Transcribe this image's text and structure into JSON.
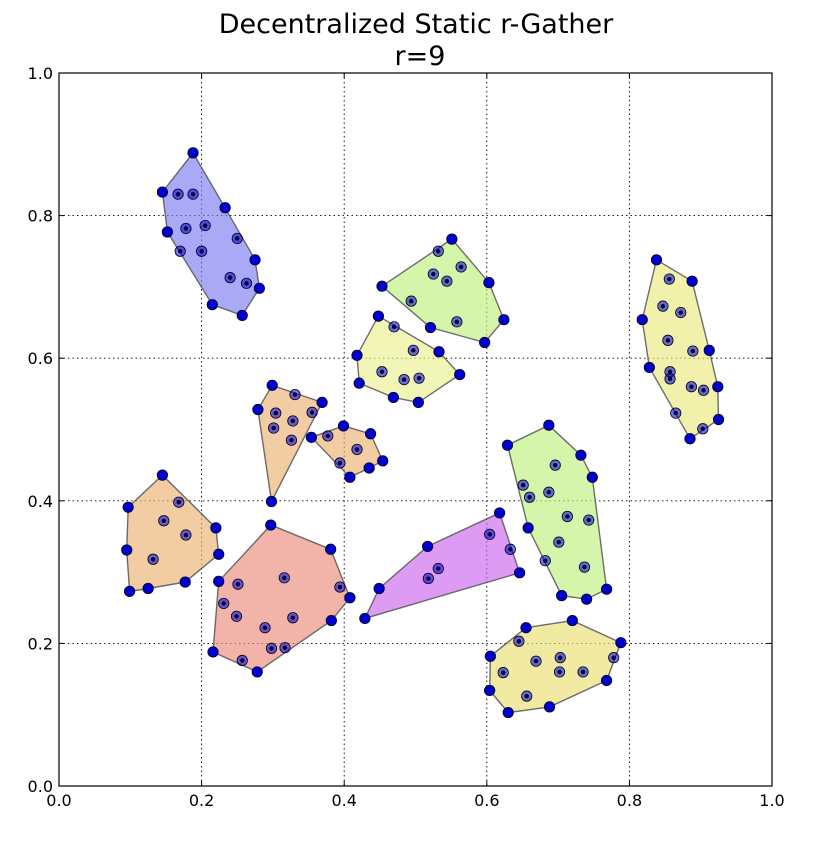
{
  "chart_data": {
    "type": "scatter",
    "title": "Decentralized Static r-Gather",
    "subtitle": "r=9",
    "xlabel": "",
    "ylabel": "",
    "xlim": [
      0.0,
      1.0
    ],
    "ylim": [
      0.0,
      1.0
    ],
    "xticks": [
      "0.0",
      "0.2",
      "0.4",
      "0.6",
      "0.8",
      "1.0"
    ],
    "yticks": [
      "0.0",
      "0.2",
      "0.4",
      "0.6",
      "0.8",
      "1.0"
    ],
    "grid": true,
    "clusters": [
      {
        "color": "#7b7bf0",
        "points": [
          [
            0.145,
            0.833
          ],
          [
            0.188,
            0.888
          ],
          [
            0.167,
            0.83
          ],
          [
            0.188,
            0.83
          ],
          [
            0.233,
            0.811
          ],
          [
            0.152,
            0.777
          ],
          [
            0.178,
            0.782
          ],
          [
            0.205,
            0.786
          ],
          [
            0.25,
            0.768
          ],
          [
            0.17,
            0.75
          ],
          [
            0.2,
            0.75
          ],
          [
            0.24,
            0.713
          ],
          [
            0.263,
            0.705
          ],
          [
            0.275,
            0.738
          ],
          [
            0.281,
            0.698
          ],
          [
            0.215,
            0.675
          ],
          [
            0.257,
            0.66
          ]
        ]
      },
      {
        "color": "#bff07e",
        "points": [
          [
            0.453,
            0.701
          ],
          [
            0.532,
            0.75
          ],
          [
            0.551,
            0.767
          ],
          [
            0.525,
            0.718
          ],
          [
            0.544,
            0.708
          ],
          [
            0.564,
            0.728
          ],
          [
            0.603,
            0.706
          ],
          [
            0.494,
            0.68
          ],
          [
            0.521,
            0.643
          ],
          [
            0.558,
            0.651
          ],
          [
            0.597,
            0.622
          ],
          [
            0.624,
            0.654
          ]
        ]
      },
      {
        "color": "#eaf08e",
        "points": [
          [
            0.448,
            0.659
          ],
          [
            0.47,
            0.644
          ],
          [
            0.418,
            0.604
          ],
          [
            0.497,
            0.611
          ],
          [
            0.533,
            0.609
          ],
          [
            0.453,
            0.581
          ],
          [
            0.484,
            0.57
          ],
          [
            0.505,
            0.572
          ],
          [
            0.562,
            0.577
          ],
          [
            0.421,
            0.565
          ],
          [
            0.469,
            0.545
          ],
          [
            0.504,
            0.538
          ]
        ]
      },
      {
        "color": "#eaea7e",
        "points": [
          [
            0.838,
            0.738
          ],
          [
            0.856,
            0.711
          ],
          [
            0.888,
            0.708
          ],
          [
            0.847,
            0.673
          ],
          [
            0.872,
            0.664
          ],
          [
            0.818,
            0.654
          ],
          [
            0.854,
            0.625
          ],
          [
            0.889,
            0.61
          ],
          [
            0.912,
            0.611
          ],
          [
            0.828,
            0.587
          ],
          [
            0.857,
            0.581
          ],
          [
            0.857,
            0.571
          ],
          [
            0.887,
            0.56
          ],
          [
            0.904,
            0.555
          ],
          [
            0.924,
            0.56
          ],
          [
            0.865,
            0.523
          ],
          [
            0.885,
            0.487
          ],
          [
            0.903,
            0.501
          ],
          [
            0.925,
            0.514
          ]
        ]
      },
      {
        "color": "#ebb070",
        "points": [
          [
            0.299,
            0.562
          ],
          [
            0.279,
            0.528
          ],
          [
            0.331,
            0.549
          ],
          [
            0.304,
            0.523
          ],
          [
            0.328,
            0.512
          ],
          [
            0.355,
            0.524
          ],
          [
            0.369,
            0.538
          ],
          [
            0.301,
            0.502
          ],
          [
            0.326,
            0.485
          ],
          [
            0.298,
            0.399
          ]
        ]
      },
      {
        "color": "#ebb070",
        "points": [
          [
            0.354,
            0.489
          ],
          [
            0.377,
            0.491
          ],
          [
            0.399,
            0.505
          ],
          [
            0.418,
            0.472
          ],
          [
            0.437,
            0.494
          ],
          [
            0.394,
            0.453
          ],
          [
            0.408,
            0.433
          ],
          [
            0.435,
            0.446
          ],
          [
            0.454,
            0.456
          ]
        ]
      },
      {
        "color": "#ebb070",
        "points": [
          [
            0.145,
            0.436
          ],
          [
            0.168,
            0.398
          ],
          [
            0.097,
            0.391
          ],
          [
            0.147,
            0.372
          ],
          [
            0.178,
            0.352
          ],
          [
            0.22,
            0.362
          ],
          [
            0.095,
            0.331
          ],
          [
            0.132,
            0.318
          ],
          [
            0.224,
            0.325
          ],
          [
            0.099,
            0.273
          ],
          [
            0.125,
            0.277
          ],
          [
            0.177,
            0.286
          ]
        ]
      },
      {
        "color": "#eb8a7a",
        "points": [
          [
            0.297,
            0.366
          ],
          [
            0.381,
            0.332
          ],
          [
            0.316,
            0.292
          ],
          [
            0.224,
            0.287
          ],
          [
            0.251,
            0.283
          ],
          [
            0.394,
            0.279
          ],
          [
            0.408,
            0.264
          ],
          [
            0.231,
            0.256
          ],
          [
            0.249,
            0.238
          ],
          [
            0.328,
            0.236
          ],
          [
            0.382,
            0.232
          ],
          [
            0.289,
            0.222
          ],
          [
            0.298,
            0.193
          ],
          [
            0.317,
            0.194
          ],
          [
            0.216,
            0.188
          ],
          [
            0.257,
            0.176
          ],
          [
            0.278,
            0.16
          ]
        ]
      },
      {
        "color": "#cc66ee",
        "points": [
          [
            0.618,
            0.383
          ],
          [
            0.604,
            0.353
          ],
          [
            0.517,
            0.336
          ],
          [
            0.633,
            0.332
          ],
          [
            0.532,
            0.305
          ],
          [
            0.518,
            0.291
          ],
          [
            0.646,
            0.299
          ],
          [
            0.449,
            0.277
          ],
          [
            0.429,
            0.235
          ]
        ]
      },
      {
        "color": "#bff07e",
        "points": [
          [
            0.687,
            0.506
          ],
          [
            0.629,
            0.478
          ],
          [
            0.732,
            0.464
          ],
          [
            0.696,
            0.45
          ],
          [
            0.748,
            0.433
          ],
          [
            0.651,
            0.422
          ],
          [
            0.66,
            0.405
          ],
          [
            0.687,
            0.412
          ],
          [
            0.713,
            0.378
          ],
          [
            0.743,
            0.373
          ],
          [
            0.658,
            0.362
          ],
          [
            0.701,
            0.342
          ],
          [
            0.682,
            0.316
          ],
          [
            0.737,
            0.307
          ],
          [
            0.705,
            0.267
          ],
          [
            0.74,
            0.262
          ],
          [
            0.768,
            0.276
          ]
        ]
      },
      {
        "color": "#e8df70",
        "points": [
          [
            0.655,
            0.222
          ],
          [
            0.72,
            0.232
          ],
          [
            0.645,
            0.203
          ],
          [
            0.788,
            0.201
          ],
          [
            0.605,
            0.182
          ],
          [
            0.703,
            0.18
          ],
          [
            0.778,
            0.18
          ],
          [
            0.623,
            0.159
          ],
          [
            0.669,
            0.175
          ],
          [
            0.702,
            0.16
          ],
          [
            0.735,
            0.16
          ],
          [
            0.768,
            0.148
          ],
          [
            0.604,
            0.134
          ],
          [
            0.656,
            0.126
          ],
          [
            0.688,
            0.111
          ],
          [
            0.63,
            0.103
          ]
        ]
      }
    ]
  }
}
